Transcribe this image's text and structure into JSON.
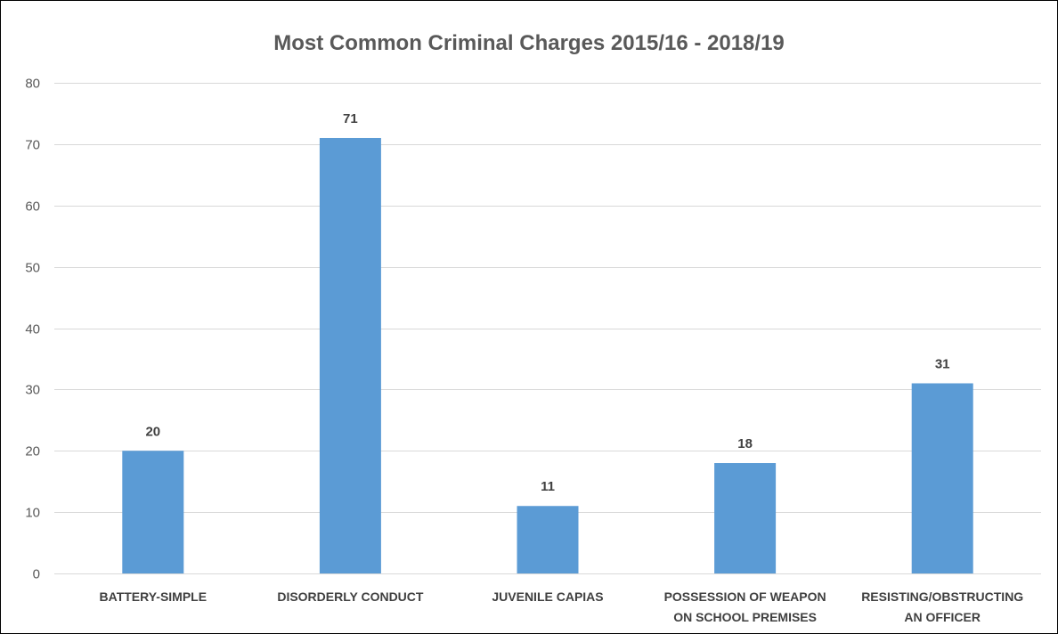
{
  "chart_data": {
    "type": "bar",
    "title": "Most Common Criminal Charges 2015/16 - 2018/19",
    "xlabel": "",
    "ylabel": "",
    "categories": [
      [
        "BATTERY-SIMPLE"
      ],
      [
        "DISORDERLY CONDUCT"
      ],
      [
        "JUVENILE CAPIAS"
      ],
      [
        "POSSESSION OF WEAPON",
        "ON SCHOOL PREMISES"
      ],
      [
        "RESISTING/OBSTRUCTING",
        "AN OFFICER"
      ]
    ],
    "values": [
      20,
      71,
      11,
      18,
      31
    ],
    "data_labels": [
      "20",
      "71",
      "11",
      "18",
      "31"
    ],
    "ylim": [
      0,
      80
    ],
    "yticks": [
      0,
      10,
      20,
      30,
      40,
      50,
      60,
      70,
      80
    ],
    "ytick_labels": [
      "0",
      "10",
      "20",
      "30",
      "40",
      "50",
      "60",
      "70",
      "80"
    ],
    "grid": true,
    "legend": "none",
    "colors": {
      "bar": "#5B9BD5",
      "grid": "#D9D9D9",
      "title": "#595959",
      "text": "#404040",
      "frame": "#000000"
    }
  }
}
